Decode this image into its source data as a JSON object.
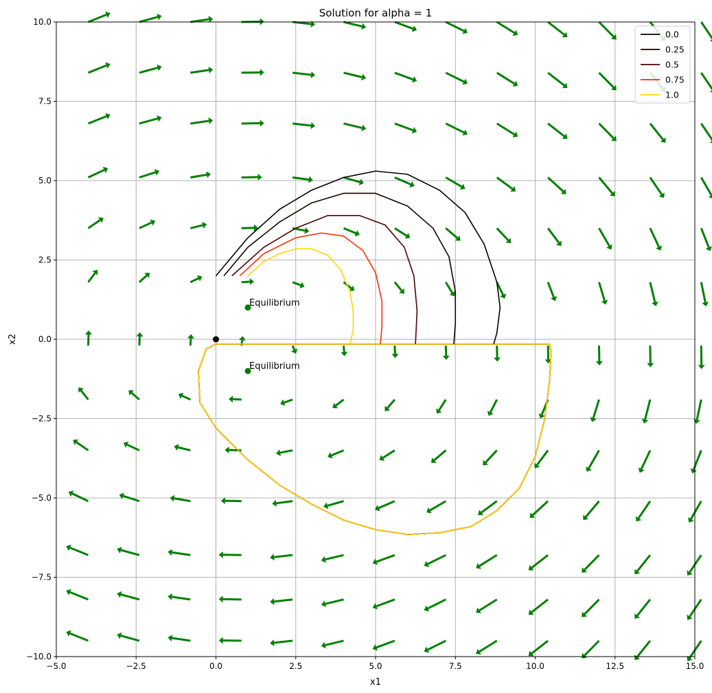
{
  "chart_data": {
    "type": "line",
    "title": "Solution for alpha = 1",
    "xlabel": "x1",
    "ylabel": "x2",
    "xlim": [
      -5,
      15
    ],
    "ylim": [
      -10,
      10
    ],
    "xticks": [
      -5,
      -2.5,
      0,
      2.5,
      5,
      7.5,
      10,
      12.5,
      15
    ],
    "yticks": [
      -10,
      -7.5,
      -5,
      -2.5,
      0,
      2.5,
      5,
      7.5,
      10
    ],
    "xtick_labels": [
      "−5.0",
      "−2.5",
      "0.0",
      "2.5",
      "5.0",
      "7.5",
      "10.0",
      "12.5",
      "15.0"
    ],
    "ytick_labels": [
      "−10.0",
      "−7.5",
      "−5.0",
      "−2.5",
      "0.0",
      "2.5",
      "5.0",
      "7.5",
      "10.0"
    ],
    "grid": true,
    "legend_position": "top-right",
    "series": [
      {
        "name": "0.0",
        "color": "#000000",
        "x": [
          0,
          1,
          2,
          3,
          4,
          5,
          6,
          7,
          7.8,
          8.4,
          8.8,
          8.9,
          8.8,
          8.7
        ],
        "y": [
          2,
          3.2,
          4.1,
          4.7,
          5.1,
          5.3,
          5.2,
          4.7,
          4.0,
          3.0,
          1.8,
          1.0,
          0.2,
          -0.15
        ]
      },
      {
        "name": "0.25",
        "color": "#100000",
        "x": [
          0.25,
          1,
          2,
          3,
          4,
          5,
          6,
          6.8,
          7.3,
          7.5,
          7.5,
          7.45
        ],
        "y": [
          2,
          2.9,
          3.7,
          4.3,
          4.6,
          4.6,
          4.2,
          3.5,
          2.6,
          1.5,
          0.5,
          -0.15
        ]
      },
      {
        "name": "0.5",
        "color": "#4d0000",
        "x": [
          0.5,
          1.5,
          2.5,
          3.5,
          4.5,
          5.3,
          5.9,
          6.2,
          6.3,
          6.25
        ],
        "y": [
          2,
          2.9,
          3.5,
          3.9,
          3.9,
          3.6,
          2.9,
          2.0,
          0.9,
          -0.15
        ]
      },
      {
        "name": "0.75",
        "color": "#ff2a00",
        "x": [
          0.75,
          1.5,
          2.5,
          3.3,
          4.0,
          4.6,
          5.0,
          5.2,
          5.2,
          5.15
        ],
        "y": [
          2,
          2.7,
          3.2,
          3.35,
          3.25,
          2.8,
          2.1,
          1.2,
          0.4,
          -0.15
        ]
      },
      {
        "name": "1.0",
        "color": "#ffd500",
        "x": [
          1,
          1.5,
          2,
          2.5,
          3,
          3.5,
          3.9,
          4.2,
          4.3,
          4.3,
          4.2
        ],
        "y": [
          2,
          2.45,
          2.7,
          2.85,
          2.85,
          2.65,
          2.2,
          1.5,
          0.9,
          0.3,
          -0.15
        ]
      }
    ],
    "loop": {
      "x": [
        0,
        -0.3,
        -0.55,
        -0.5,
        0,
        1,
        2,
        3,
        4,
        5,
        6,
        7,
        8,
        8.8,
        9.5,
        10.0,
        10.3,
        10.45,
        10.5,
        10.45,
        0
      ],
      "y": [
        -0.15,
        -0.3,
        -1.0,
        -2.0,
        -2.8,
        -3.8,
        -4.6,
        -5.2,
        -5.7,
        -6.0,
        -6.15,
        -6.1,
        -5.9,
        -5.4,
        -4.7,
        -3.7,
        -2.5,
        -1.3,
        -0.4,
        -0.15,
        -0.15
      ]
    },
    "equilibria": [
      {
        "x": 1,
        "y": 1,
        "label": "Equilibrium"
      },
      {
        "x": 1,
        "y": -1,
        "label": "Equilibrium"
      }
    ],
    "origin_marker": {
      "x": 0,
      "y": 0
    },
    "quiver": {
      "color": "#008000",
      "x": [
        -4.0,
        -2.4,
        -0.8,
        0.8,
        2.4,
        4.0,
        5.6,
        7.2,
        8.8,
        10.4,
        12.0,
        13.6,
        15.2
      ],
      "y": [
        -9.5,
        -8.2,
        -6.8,
        -5.1,
        -3.5,
        -1.9,
        -0.2,
        1.8,
        3.5,
        5.1,
        6.8,
        8.4,
        10.0
      ]
    },
    "grid_color": "#b0b0b0"
  }
}
